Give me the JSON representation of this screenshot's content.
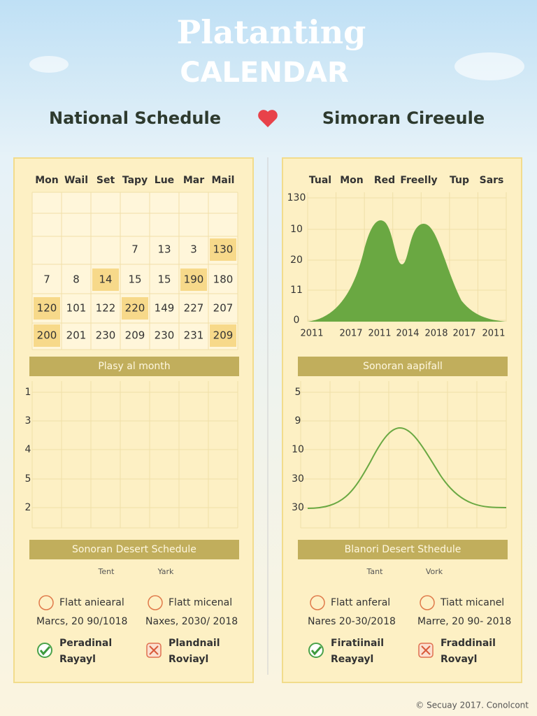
{
  "header": {
    "title": "Platanting",
    "subtitle": "CALENDAR"
  },
  "panels": [
    {
      "heading": "National Schedule",
      "calendar": {
        "days": [
          "Mon",
          "Wail",
          "Set",
          "Tapy",
          "Lue",
          "Mar",
          "Mail"
        ],
        "rows": [
          [
            null,
            null,
            null,
            {
              "text": "7"
            },
            {
              "text": "13"
            },
            {
              "text": "3"
            },
            {
              "text": "130",
              "highlight": true
            }
          ],
          [
            {
              "text": "7"
            },
            {
              "text": "8"
            },
            {
              "text": "14",
              "highlight": true
            },
            {
              "text": "15"
            },
            {
              "text": "15"
            },
            {
              "text": "190",
              "highlight": true
            },
            {
              "text": "180"
            }
          ],
          [
            {
              "text": "120",
              "highlight": true
            },
            {
              "text": "101"
            },
            {
              "text": "122"
            },
            {
              "text": "220",
              "highlight": true
            },
            {
              "text": "149"
            },
            {
              "text": "227"
            },
            {
              "text": "207"
            }
          ],
          [
            {
              "text": "200",
              "highlight": true
            },
            {
              "text": "201"
            },
            {
              "text": "230"
            },
            {
              "text": "209"
            },
            {
              "text": "230"
            },
            {
              "text": "231"
            },
            {
              "text": "209",
              "highlight": true
            }
          ]
        ]
      },
      "band1": "Plasy al month",
      "chart": {
        "y_labels": [
          "1",
          "3",
          "4",
          "5",
          "2"
        ]
      },
      "band2": "Sonoran Desert Schedule",
      "schedule": {
        "columns": [
          "Tent",
          "Yark"
        ],
        "items": [
          {
            "name": "Flatt aniearal",
            "date": "Marcs, 20 90/1018"
          },
          {
            "name": "Flatt micenal",
            "date": "Naxes, 2030/ 2018"
          }
        ],
        "status": [
          {
            "lines": [
              "Peradinal",
              "Rayayl"
            ],
            "ok": true
          },
          {
            "lines": [
              "Plandnail",
              "Roviayl"
            ],
            "ok": false
          }
        ]
      }
    },
    {
      "heading": "Simoran Cireeule",
      "weekdays": [
        "Tual",
        "Mon",
        "Red",
        "Freelly",
        "Tup",
        "Sars"
      ],
      "area_chart": {
        "y_labels": [
          "130",
          "10",
          "20",
          "11",
          "0"
        ],
        "x_labels": [
          "2011",
          "2017",
          "2011",
          "2014",
          "2018",
          "2017",
          "2011"
        ],
        "color": "#6aa842"
      },
      "band1": "Sonoran aapifall",
      "chart": {
        "y_labels": [
          "5",
          "9",
          "10",
          "30",
          "30"
        ],
        "color": "#6aa842"
      },
      "band2": "Blanori Desert Sthedule",
      "schedule": {
        "columns": [
          "Tant",
          "Vork"
        ],
        "items": [
          {
            "name": "Flatt anferal",
            "date": "Nares 20-30/2018"
          },
          {
            "name": "Tiatt micanel",
            "date": "Marre, 20 90- 2018"
          }
        ],
        "status": [
          {
            "lines": [
              "Firatiinail",
              "Reayayl"
            ],
            "ok": true
          },
          {
            "lines": [
              "Fraddinail",
              "Rovayl"
            ],
            "ok": false
          }
        ]
      }
    }
  ],
  "footer": "© Secuay 2017. Conolcont"
}
